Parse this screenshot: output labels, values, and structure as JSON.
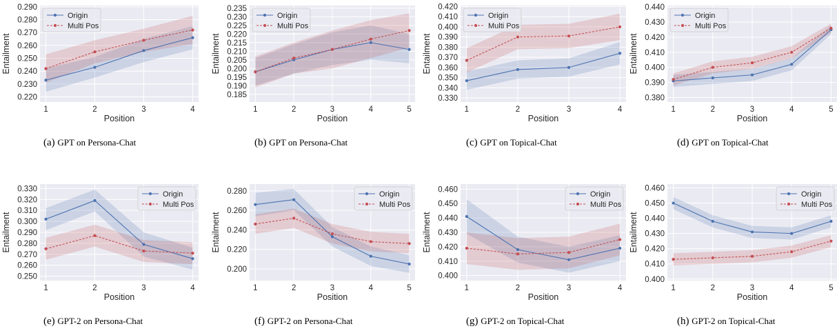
{
  "colors": {
    "origin": "#4c72b0",
    "multi_pos": "#c44e52",
    "plot_bg": "#eaeaf2",
    "grid": "#ffffff"
  },
  "chart_data": [
    {
      "type": "line",
      "caption": {
        "letter": "(a)",
        "text": "GPT on Persona-Chat"
      },
      "xlabel": "Position",
      "ylabel": "Entailment",
      "x": [
        1,
        2,
        3,
        4
      ],
      "xlim": [
        0.88,
        4.12
      ],
      "ylim": [
        0.216,
        0.291
      ],
      "yticks": [
        0.22,
        0.23,
        0.24,
        0.25,
        0.26,
        0.27,
        0.28,
        0.29
      ],
      "tick_decimals": 3,
      "legend": "top-left",
      "grid": true,
      "series": [
        {
          "name": "Origin",
          "values": [
            0.233,
            0.243,
            0.256,
            0.266
          ],
          "ci_low": [
            0.224,
            0.235,
            0.247,
            0.257
          ],
          "ci_high": [
            0.242,
            0.251,
            0.265,
            0.275
          ],
          "color": "#4c72b0",
          "style": "solid"
        },
        {
          "name": "Multi Pos",
          "values": [
            0.242,
            0.255,
            0.264,
            0.272
          ],
          "ci_low": [
            0.231,
            0.246,
            0.255,
            0.261
          ],
          "ci_high": [
            0.253,
            0.264,
            0.273,
            0.283
          ],
          "color": "#c44e52",
          "style": "dashed"
        }
      ]
    },
    {
      "type": "line",
      "caption": {
        "letter": "(b)",
        "text": "GPT on Persona-Chat"
      },
      "xlabel": "Position",
      "ylabel": "Entailment",
      "x": [
        1,
        2,
        3,
        4,
        5
      ],
      "xlim": [
        0.85,
        5.15
      ],
      "ylim": [
        0.1805,
        0.2365
      ],
      "yticks": [
        0.185,
        0.19,
        0.195,
        0.2,
        0.205,
        0.21,
        0.215,
        0.22,
        0.225,
        0.23,
        0.235
      ],
      "tick_decimals": 3,
      "legend": "top-left",
      "grid": true,
      "series": [
        {
          "name": "Origin",
          "values": [
            0.198,
            0.205,
            0.211,
            0.215,
            0.211
          ],
          "ci_low": [
            0.19,
            0.197,
            0.202,
            0.205,
            0.203
          ],
          "ci_high": [
            0.206,
            0.214,
            0.221,
            0.225,
            0.22
          ],
          "color": "#4c72b0",
          "style": "solid"
        },
        {
          "name": "Multi Pos",
          "values": [
            0.198,
            0.206,
            0.211,
            0.217,
            0.222
          ],
          "ci_low": [
            0.189,
            0.197,
            0.2,
            0.206,
            0.212
          ],
          "ci_high": [
            0.207,
            0.215,
            0.222,
            0.228,
            0.232
          ],
          "color": "#c44e52",
          "style": "dashed"
        }
      ]
    },
    {
      "type": "line",
      "caption": {
        "letter": "(c)",
        "text": "GPT on Topical-Chat"
      },
      "xlabel": "Position",
      "ylabel": "Entailment",
      "x": [
        1,
        2,
        3,
        4
      ],
      "xlim": [
        0.88,
        4.12
      ],
      "ylim": [
        0.326,
        0.421
      ],
      "yticks": [
        0.33,
        0.34,
        0.35,
        0.36,
        0.37,
        0.38,
        0.39,
        0.4,
        0.41,
        0.42
      ],
      "tick_decimals": 3,
      "legend": "top-left",
      "grid": true,
      "series": [
        {
          "name": "Origin",
          "values": [
            0.347,
            0.358,
            0.36,
            0.374
          ],
          "ci_low": [
            0.338,
            0.349,
            0.351,
            0.363
          ],
          "ci_high": [
            0.356,
            0.367,
            0.369,
            0.385
          ],
          "color": "#4c72b0",
          "style": "solid"
        },
        {
          "name": "Multi Pos",
          "values": [
            0.367,
            0.39,
            0.391,
            0.4
          ],
          "ci_low": [
            0.355,
            0.378,
            0.379,
            0.387
          ],
          "ci_high": [
            0.379,
            0.402,
            0.403,
            0.413
          ],
          "color": "#c44e52",
          "style": "dashed"
        }
      ]
    },
    {
      "type": "line",
      "caption": {
        "letter": "(d)",
        "text": "GPT on Topical-Chat"
      },
      "xlabel": "Position",
      "ylabel": "Entailment",
      "x": [
        1,
        2,
        3,
        4,
        5
      ],
      "xlim": [
        0.85,
        5.15
      ],
      "ylim": [
        0.377,
        0.441
      ],
      "yticks": [
        0.38,
        0.39,
        0.4,
        0.41,
        0.42,
        0.43,
        0.44
      ],
      "tick_decimals": 3,
      "legend": "top-left",
      "grid": true,
      "series": [
        {
          "name": "Origin",
          "values": [
            0.391,
            0.393,
            0.395,
            0.402,
            0.425
          ],
          "ci_low": [
            0.387,
            0.389,
            0.391,
            0.398,
            0.422
          ],
          "ci_high": [
            0.395,
            0.397,
            0.399,
            0.406,
            0.428
          ],
          "color": "#4c72b0",
          "style": "solid"
        },
        {
          "name": "Multi Pos",
          "values": [
            0.392,
            0.4,
            0.403,
            0.41,
            0.426
          ],
          "ci_low": [
            0.388,
            0.396,
            0.399,
            0.406,
            0.423
          ],
          "ci_high": [
            0.396,
            0.404,
            0.407,
            0.414,
            0.429
          ],
          "color": "#c44e52",
          "style": "dashed"
        }
      ]
    },
    {
      "type": "line",
      "caption": {
        "letter": "(e)",
        "text": "GPT-2 on Persona-Chat"
      },
      "xlabel": "Position",
      "ylabel": "Entailment",
      "x": [
        1,
        2,
        3,
        4
      ],
      "xlim": [
        0.88,
        4.12
      ],
      "ylim": [
        0.246,
        0.334
      ],
      "yticks": [
        0.25,
        0.26,
        0.27,
        0.28,
        0.29,
        0.3,
        0.31,
        0.32,
        0.33
      ],
      "tick_decimals": 3,
      "legend": "top-right",
      "grid": true,
      "series": [
        {
          "name": "Origin",
          "values": [
            0.302,
            0.319,
            0.279,
            0.266
          ],
          "ci_low": [
            0.292,
            0.309,
            0.268,
            0.256
          ],
          "ci_high": [
            0.312,
            0.329,
            0.29,
            0.276
          ],
          "color": "#4c72b0",
          "style": "solid"
        },
        {
          "name": "Multi Pos",
          "values": [
            0.275,
            0.287,
            0.273,
            0.271
          ],
          "ci_low": [
            0.265,
            0.277,
            0.263,
            0.261
          ],
          "ci_high": [
            0.285,
            0.297,
            0.283,
            0.281
          ],
          "color": "#c44e52",
          "style": "dashed"
        }
      ]
    },
    {
      "type": "line",
      "caption": {
        "letter": "(f)",
        "text": "GPT-2 on Persona-Chat"
      },
      "xlabel": "Position",
      "ylabel": "Entailment",
      "x": [
        1,
        2,
        3,
        4,
        5
      ],
      "xlim": [
        0.85,
        5.15
      ],
      "ylim": [
        0.188,
        0.287
      ],
      "yticks": [
        0.2,
        0.22,
        0.24,
        0.26,
        0.28
      ],
      "tick_decimals": 3,
      "legend": "top-right",
      "grid": true,
      "series": [
        {
          "name": "Origin",
          "values": [
            0.266,
            0.271,
            0.233,
            0.213,
            0.205
          ],
          "ci_low": [
            0.254,
            0.26,
            0.223,
            0.203,
            0.196
          ],
          "ci_high": [
            0.278,
            0.282,
            0.243,
            0.223,
            0.214
          ],
          "color": "#4c72b0",
          "style": "solid"
        },
        {
          "name": "Multi Pos",
          "values": [
            0.246,
            0.252,
            0.236,
            0.228,
            0.226
          ],
          "ci_low": [
            0.236,
            0.242,
            0.226,
            0.218,
            0.216
          ],
          "ci_high": [
            0.256,
            0.262,
            0.246,
            0.238,
            0.236
          ],
          "color": "#c44e52",
          "style": "dashed"
        }
      ]
    },
    {
      "type": "line",
      "caption": {
        "letter": "(g)",
        "text": "GPT-2 on Topical-Chat"
      },
      "xlabel": "Position",
      "ylabel": "Entailment",
      "x": [
        1,
        2,
        3,
        4
      ],
      "xlim": [
        0.88,
        4.12
      ],
      "ylim": [
        0.3965,
        0.4635
      ],
      "yticks": [
        0.4,
        0.41,
        0.42,
        0.43,
        0.44,
        0.45,
        0.46
      ],
      "tick_decimals": 3,
      "legend": "top-right",
      "grid": true,
      "series": [
        {
          "name": "Origin",
          "values": [
            0.441,
            0.418,
            0.411,
            0.419
          ],
          "ci_low": [
            0.429,
            0.409,
            0.402,
            0.41
          ],
          "ci_high": [
            0.453,
            0.427,
            0.42,
            0.428
          ],
          "color": "#4c72b0",
          "style": "solid"
        },
        {
          "name": "Multi Pos",
          "values": [
            0.419,
            0.415,
            0.416,
            0.425
          ],
          "ci_low": [
            0.408,
            0.404,
            0.405,
            0.414
          ],
          "ci_high": [
            0.43,
            0.426,
            0.427,
            0.436
          ],
          "color": "#c44e52",
          "style": "dashed"
        }
      ]
    },
    {
      "type": "line",
      "caption": {
        "letter": "(h)",
        "text": "GPT-2 on Topical-Chat"
      },
      "xlabel": "Position",
      "ylabel": "Entailment",
      "x": [
        1,
        2,
        3,
        4,
        5
      ],
      "xlim": [
        0.85,
        5.15
      ],
      "ylim": [
        0.399,
        0.4625
      ],
      "yticks": [
        0.4,
        0.41,
        0.42,
        0.43,
        0.44,
        0.45,
        0.46
      ],
      "tick_decimals": 3,
      "legend": "top-right",
      "grid": true,
      "series": [
        {
          "name": "Origin",
          "values": [
            0.45,
            0.438,
            0.431,
            0.43,
            0.438
          ],
          "ci_low": [
            0.446,
            0.434,
            0.427,
            0.426,
            0.434
          ],
          "ci_high": [
            0.454,
            0.442,
            0.435,
            0.434,
            0.442
          ],
          "color": "#4c72b0",
          "style": "solid"
        },
        {
          "name": "Multi Pos",
          "values": [
            0.413,
            0.414,
            0.415,
            0.418,
            0.425
          ],
          "ci_low": [
            0.409,
            0.41,
            0.411,
            0.414,
            0.421
          ],
          "ci_high": [
            0.417,
            0.418,
            0.419,
            0.422,
            0.429
          ],
          "color": "#c44e52",
          "style": "dashed"
        }
      ]
    }
  ]
}
